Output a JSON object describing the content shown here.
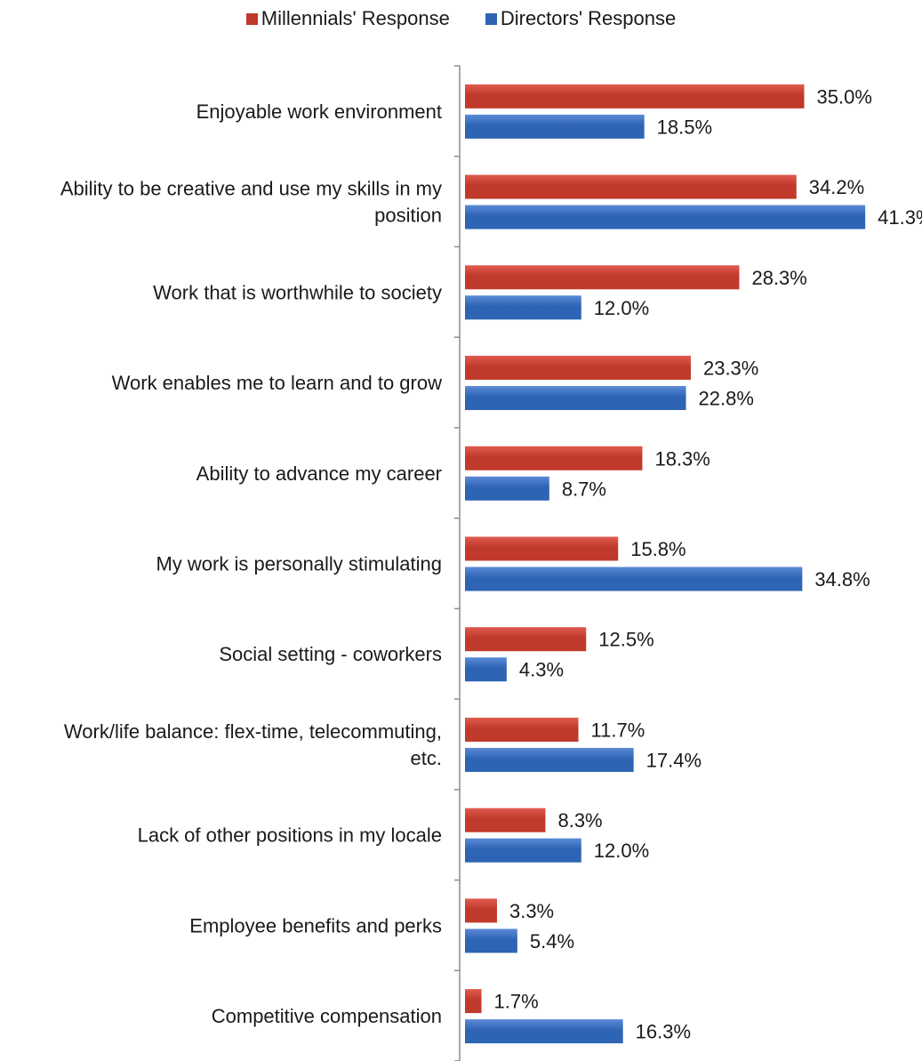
{
  "chart_data": {
    "type": "bar",
    "orientation": "horizontal",
    "title": "",
    "xlabel": "",
    "ylabel": "",
    "value_format": "percent_1dp",
    "xlim": [
      0,
      45
    ],
    "grid": false,
    "legend_position": "top",
    "categories": [
      "Enjoyable work environment",
      "Ability to be creative and use my skills in my position",
      "Work that is worthwhile to society",
      "Work enables me to learn and to grow",
      "Ability to advance my career",
      "My work is personally stimulating",
      "Social setting - coworkers",
      "Work/life balance: flex-time, telecommuting, etc.",
      "Lack of other positions in my locale",
      "Employee benefits and perks",
      "Competitive compensation"
    ],
    "category_lines": [
      [
        "Enjoyable work environment"
      ],
      [
        "Ability to be creative and use my skills in my",
        "position"
      ],
      [
        "Work that is worthwhile to society"
      ],
      [
        "Work enables me to learn and to grow"
      ],
      [
        "Ability to advance my career"
      ],
      [
        "My work is personally stimulating"
      ],
      [
        "Social setting - coworkers"
      ],
      [
        "Work/life balance: flex-time, telecommuting,",
        "etc."
      ],
      [
        "Lack of other positions in my locale"
      ],
      [
        "Employee benefits and perks"
      ],
      [
        "Competitive compensation"
      ]
    ],
    "series": [
      {
        "name": "Millennials' Response",
        "color": "#c0392b",
        "color_light": "#e05a4e",
        "values": [
          35.0,
          34.2,
          28.3,
          23.3,
          18.3,
          15.8,
          12.5,
          11.7,
          8.3,
          3.3,
          1.7
        ]
      },
      {
        "name": "Directors' Response",
        "color": "#2e64b4",
        "color_light": "#5b8ad6",
        "values": [
          18.5,
          41.3,
          12.0,
          22.8,
          8.7,
          34.8,
          4.3,
          17.4,
          12.0,
          5.4,
          16.3
        ]
      }
    ]
  }
}
